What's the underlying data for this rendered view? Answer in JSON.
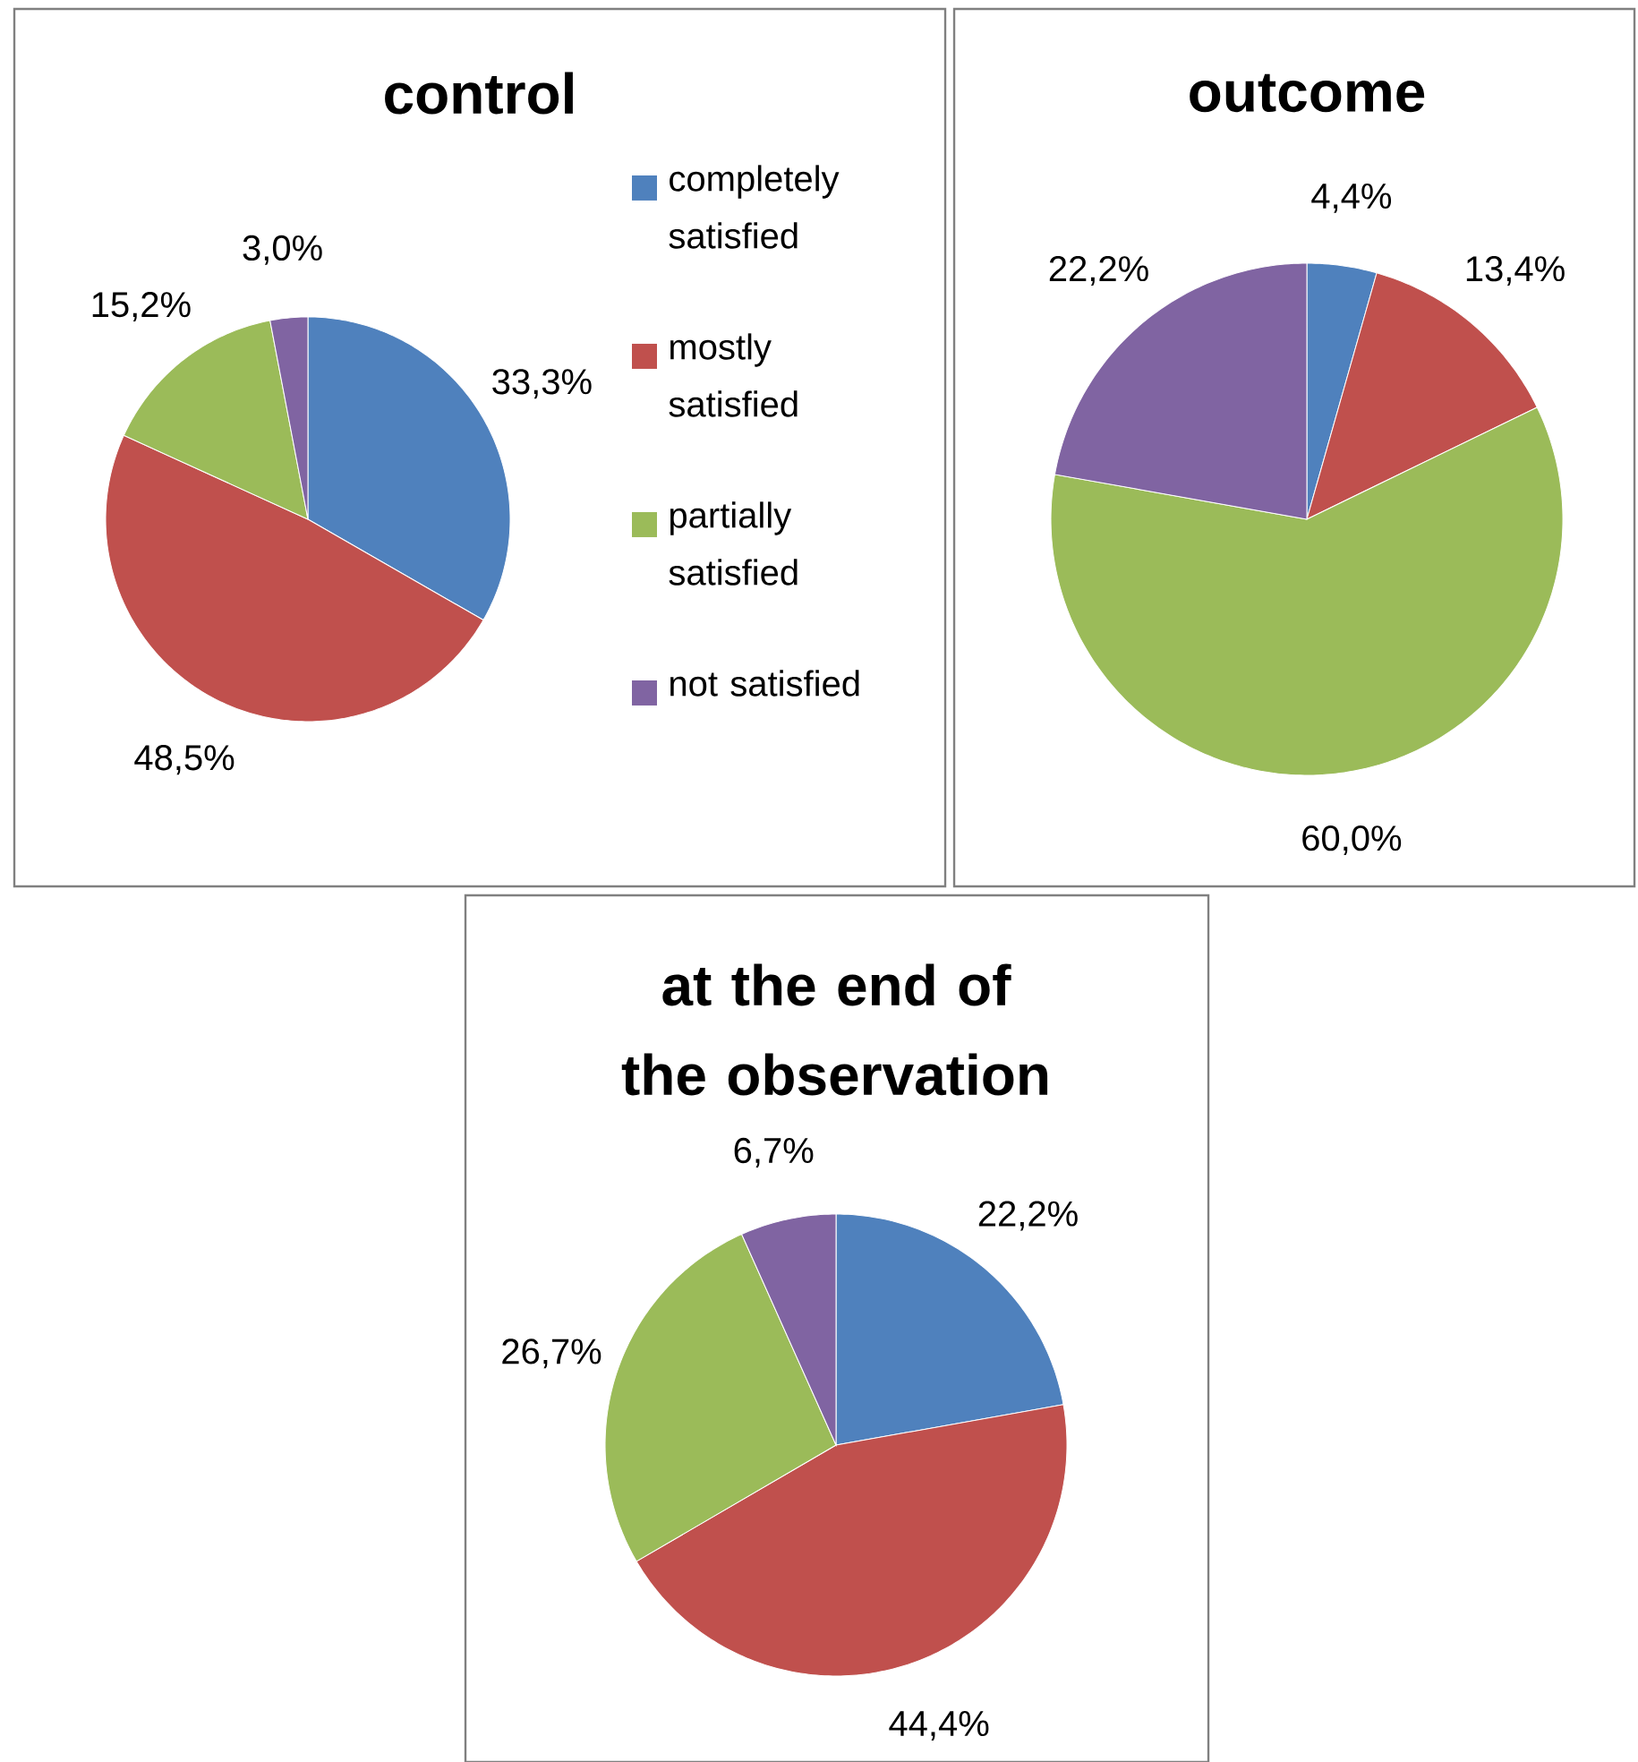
{
  "chart_data": [
    {
      "type": "pie",
      "title": "control",
      "categories": [
        "completely satisfied",
        "mostly satisfied",
        "partially satisfied",
        "not satisfied"
      ],
      "values": [
        33.3,
        48.5,
        15.2,
        3.0
      ],
      "colors": [
        "#4f81bd",
        "#c0504d",
        "#9bbb59",
        "#8064a2"
      ],
      "value_labels": [
        "33,3%",
        "48,5%",
        "15,2%",
        "3,0%"
      ],
      "legend": "right"
    },
    {
      "type": "pie",
      "title": "outcome",
      "categories": [
        null,
        null,
        null,
        null
      ],
      "values": [
        4.4,
        13.4,
        60.0,
        22.2
      ],
      "colors": [
        "#4f81bd",
        "#c0504d",
        "#9bbb59",
        "#8064a2"
      ],
      "value_labels": [
        "4,4%",
        "13,4%",
        "60,0%",
        "22,2%"
      ]
    },
    {
      "type": "pie",
      "title": "at the end of the observation",
      "categories": [
        null,
        null,
        null,
        null
      ],
      "values": [
        22.2,
        44.4,
        26.7,
        6.7
      ],
      "colors": [
        "#4f81bd",
        "#c0504d",
        "#9bbb59",
        "#8064a2"
      ],
      "value_labels": [
        "22,2%",
        "44,4%",
        "26,7%",
        "6,7%"
      ]
    }
  ]
}
